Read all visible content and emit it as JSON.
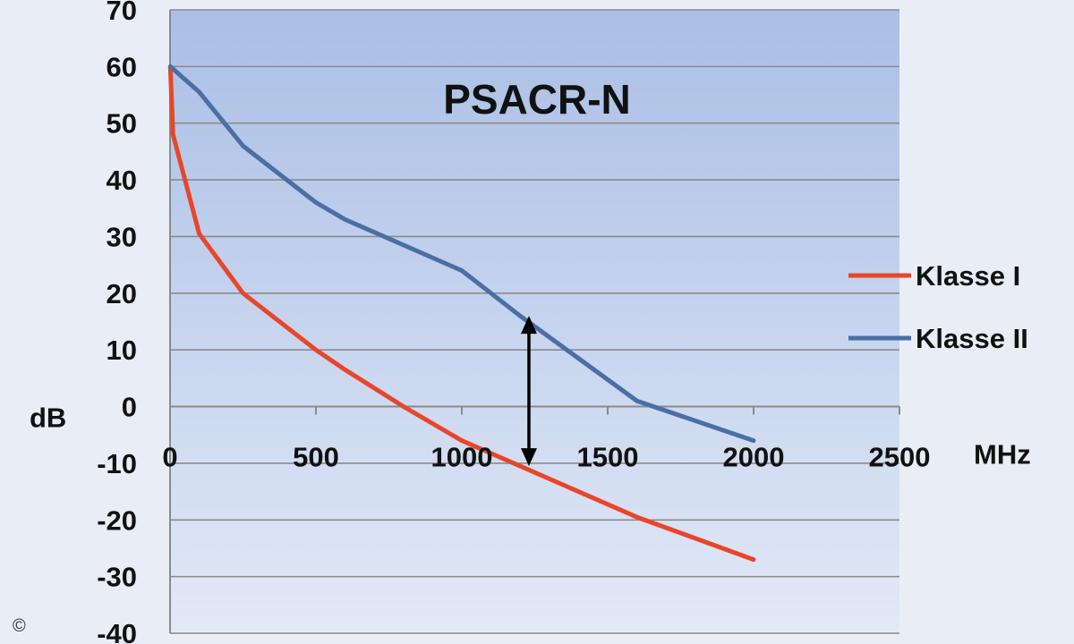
{
  "chart_data": {
    "type": "line",
    "title": "PSACR-N",
    "xlabel": "MHz",
    "ylabel": "dB",
    "xlim": [
      0,
      2500
    ],
    "ylim": [
      -40,
      70
    ],
    "x_ticks": [
      "0",
      "500",
      "1000",
      "1500",
      "2000",
      "2500"
    ],
    "y_ticks": [
      "70",
      "60",
      "50",
      "40",
      "30",
      "20",
      "10",
      "0",
      "-10",
      "-20",
      "-30",
      "-40"
    ],
    "grid": "horizontal",
    "legend_position": "right",
    "series": [
      {
        "name": "Klasse I",
        "color": "#e8462b",
        "x": [
          1,
          10,
          100,
          250,
          500,
          600,
          800,
          1000,
          1200,
          1600,
          2000
        ],
        "y": [
          60,
          48,
          30.5,
          20,
          10,
          6.5,
          0,
          -6,
          -10.5,
          -19.5,
          -27
        ]
      },
      {
        "name": "Klasse II",
        "color": "#4a6fa5",
        "x": [
          1,
          100,
          250,
          500,
          600,
          1000,
          1200,
          1600,
          2000
        ],
        "y": [
          60,
          55.5,
          46,
          36,
          33,
          24,
          16,
          1,
          -6
        ]
      }
    ],
    "annotation": {
      "type": "double-arrow",
      "x": 1230,
      "y_from": -10.5,
      "y_to": 16
    }
  },
  "copyright_mark": "©"
}
